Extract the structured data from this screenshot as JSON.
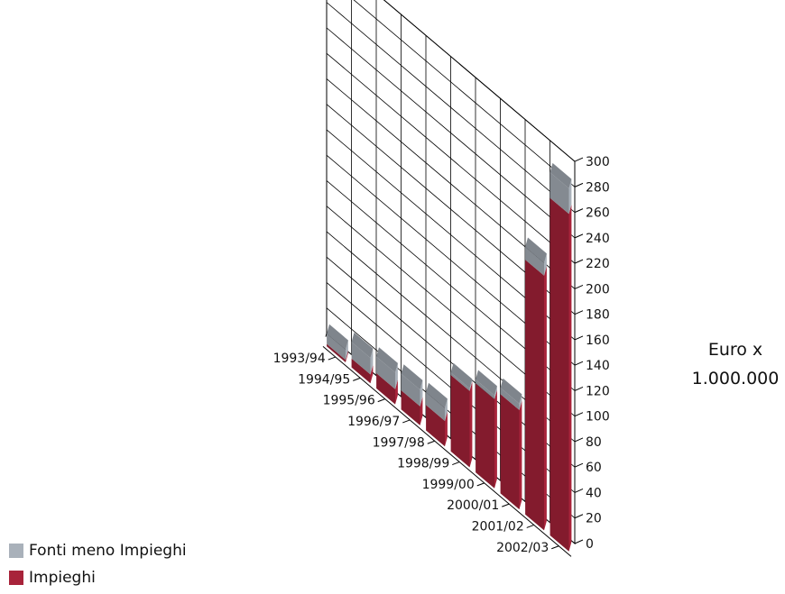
{
  "chart_data": {
    "type": "bar",
    "stacked": true,
    "three_d": true,
    "categories": [
      "1993/94",
      "1994/95",
      "1995/96",
      "1996/97",
      "1997/98",
      "1998/99",
      "1999/00",
      "2000/01",
      "2001/02",
      "2002/03"
    ],
    "series": [
      {
        "name": "Impieghi",
        "color": "#a8233a",
        "values": [
          2,
          7,
          12,
          15,
          20,
          60,
          70,
          78,
          200,
          265
        ]
      },
      {
        "name": "Fonti meno Impieghi",
        "color": "#a9b1ba",
        "values": [
          8,
          13,
          13,
          13,
          10,
          2,
          3,
          5,
          10,
          20
        ]
      }
    ],
    "ylabel_lines": [
      "Euro x",
      "1.000.000"
    ],
    "yticks": [
      0,
      20,
      40,
      60,
      80,
      100,
      120,
      140,
      160,
      180,
      200,
      220,
      240,
      260,
      280,
      300
    ],
    "ylim": [
      0,
      300
    ],
    "grid": true,
    "legend_position": "bottom-left"
  }
}
